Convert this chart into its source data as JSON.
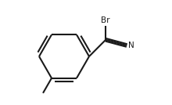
{
  "background_color": "#ffffff",
  "line_color": "#1a1a1a",
  "line_width": 1.5,
  "text_color": "#1a1a1a",
  "br_label": "Br",
  "n_label": "N",
  "font_size_labels": 7.5,
  "fig_w": 2.2,
  "fig_h": 1.34,
  "dpi": 100
}
